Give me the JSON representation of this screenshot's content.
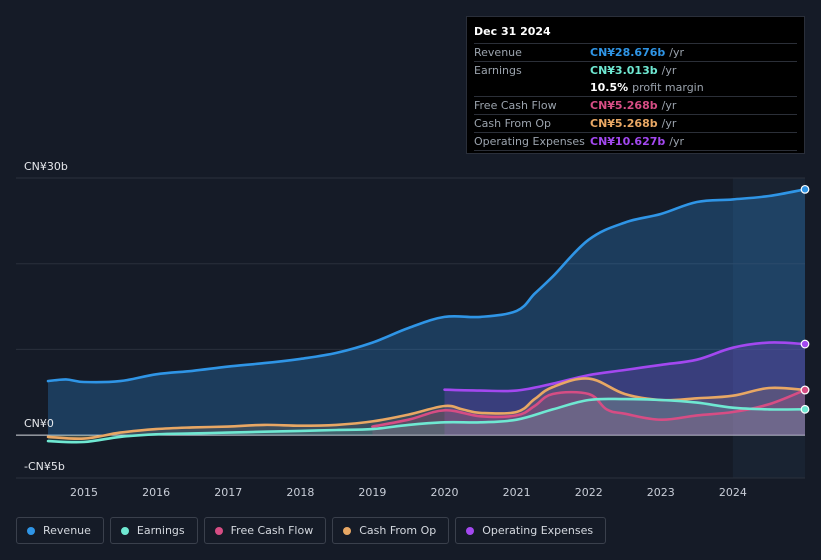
{
  "chart_data": {
    "type": "area",
    "y_unit": "CN¥",
    "ylim": [
      -5,
      30
    ],
    "xlim": [
      2014.5,
      2025.0
    ],
    "y_tick_labels": [
      {
        "value": 30,
        "label": "CN¥30b"
      },
      {
        "value": 0,
        "label": "CN¥0"
      },
      {
        "value": -5,
        "label": "-CN¥5b"
      }
    ],
    "x_ticks": [
      {
        "value": 2015,
        "label": "2015"
      },
      {
        "value": 2016,
        "label": "2016"
      },
      {
        "value": 2017,
        "label": "2017"
      },
      {
        "value": 2018,
        "label": "2018"
      },
      {
        "value": 2019,
        "label": "2019"
      },
      {
        "value": 2020,
        "label": "2020"
      },
      {
        "value": 2021,
        "label": "2021"
      },
      {
        "value": 2022,
        "label": "2022"
      },
      {
        "value": 2023,
        "label": "2023"
      },
      {
        "value": 2024,
        "label": "2024"
      }
    ],
    "highlight_from": 2024.0,
    "series": [
      {
        "name": "Revenue",
        "color": "#2f95e6",
        "x": [
          2014.5,
          2014.75,
          2015.0,
          2015.5,
          2016.0,
          2016.5,
          2017.0,
          2017.5,
          2018.0,
          2018.5,
          2019.0,
          2019.5,
          2020.0,
          2020.5,
          2021.0,
          2021.25,
          2021.5,
          2022.0,
          2022.5,
          2023.0,
          2023.5,
          2024.0,
          2024.5,
          2025.0
        ],
        "values": [
          6.3,
          6.5,
          6.2,
          6.3,
          7.1,
          7.5,
          8.0,
          8.4,
          8.9,
          9.6,
          10.8,
          12.5,
          13.8,
          13.8,
          14.5,
          16.5,
          18.5,
          22.8,
          24.8,
          25.8,
          27.2,
          27.5,
          27.9,
          28.676
        ]
      },
      {
        "name": "Operating Expenses",
        "color": "#a348f0",
        "x": [
          2020.0,
          2020.5,
          2021.0,
          2021.5,
          2022.0,
          2022.5,
          2023.0,
          2023.5,
          2024.0,
          2024.5,
          2025.0
        ],
        "values": [
          5.3,
          5.2,
          5.2,
          6.0,
          7.0,
          7.6,
          8.2,
          8.8,
          10.2,
          10.8,
          10.627
        ]
      },
      {
        "name": "Cash From Op",
        "color": "#e8a764",
        "x": [
          2014.5,
          2015.0,
          2015.5,
          2016.0,
          2016.5,
          2017.0,
          2017.5,
          2018.0,
          2018.5,
          2019.0,
          2019.5,
          2020.0,
          2020.25,
          2020.5,
          2021.0,
          2021.25,
          2021.5,
          2022.0,
          2022.5,
          2023.0,
          2023.5,
          2024.0,
          2024.5,
          2025.0
        ],
        "values": [
          -0.2,
          -0.4,
          0.3,
          0.7,
          0.9,
          1.0,
          1.2,
          1.1,
          1.2,
          1.6,
          2.4,
          3.4,
          3.0,
          2.6,
          2.7,
          4.2,
          5.6,
          6.6,
          4.8,
          4.1,
          4.3,
          4.6,
          5.5,
          5.268
        ]
      },
      {
        "name": "Free Cash Flow",
        "color": "#d64d84",
        "x": [
          2019.0,
          2019.5,
          2020.0,
          2020.5,
          2021.0,
          2021.25,
          2021.5,
          2022.0,
          2022.25,
          2022.5,
          2023.0,
          2023.5,
          2024.0,
          2024.5,
          2025.0
        ],
        "values": [
          1.0,
          1.8,
          2.9,
          2.2,
          2.3,
          3.4,
          4.8,
          4.8,
          3.0,
          2.5,
          1.8,
          2.3,
          2.7,
          3.6,
          5.268
        ]
      },
      {
        "name": "Earnings",
        "color": "#6fe8d2",
        "x": [
          2014.5,
          2015.0,
          2015.5,
          2016.0,
          2016.5,
          2017.0,
          2017.5,
          2018.0,
          2018.5,
          2019.0,
          2019.5,
          2020.0,
          2020.5,
          2021.0,
          2021.5,
          2022.0,
          2022.5,
          2023.0,
          2023.5,
          2024.0,
          2024.5,
          2025.0
        ],
        "values": [
          -0.7,
          -0.8,
          -0.2,
          0.1,
          0.2,
          0.3,
          0.4,
          0.5,
          0.6,
          0.7,
          1.2,
          1.5,
          1.5,
          1.8,
          3.0,
          4.1,
          4.2,
          4.1,
          3.8,
          3.2,
          3.0,
          3.013
        ]
      }
    ]
  },
  "tooltip": {
    "date": "Dec 31 2024",
    "rows": [
      {
        "label": "Revenue",
        "value": "CN¥28.676b",
        "unit": "/yr",
        "color": "#2f95e6"
      },
      {
        "label": "Earnings",
        "value": "CN¥3.013b",
        "unit": "/yr",
        "color": "#6fe8d2"
      },
      {
        "label": "",
        "value": "10.5%",
        "unit": "profit margin",
        "color": "#ffffff"
      },
      {
        "label": "Free Cash Flow",
        "value": "CN¥5.268b",
        "unit": "/yr",
        "color": "#d64d84"
      },
      {
        "label": "Cash From Op",
        "value": "CN¥5.268b",
        "unit": "/yr",
        "color": "#e8a764"
      },
      {
        "label": "Operating Expenses",
        "value": "CN¥10.627b",
        "unit": "/yr",
        "color": "#a348f0"
      }
    ]
  },
  "legend": [
    {
      "label": "Revenue",
      "color": "#2f95e6"
    },
    {
      "label": "Earnings",
      "color": "#6fe8d2"
    },
    {
      "label": "Free Cash Flow",
      "color": "#d64d84"
    },
    {
      "label": "Cash From Op",
      "color": "#e8a764"
    },
    {
      "label": "Operating Expenses",
      "color": "#a348f0"
    }
  ]
}
